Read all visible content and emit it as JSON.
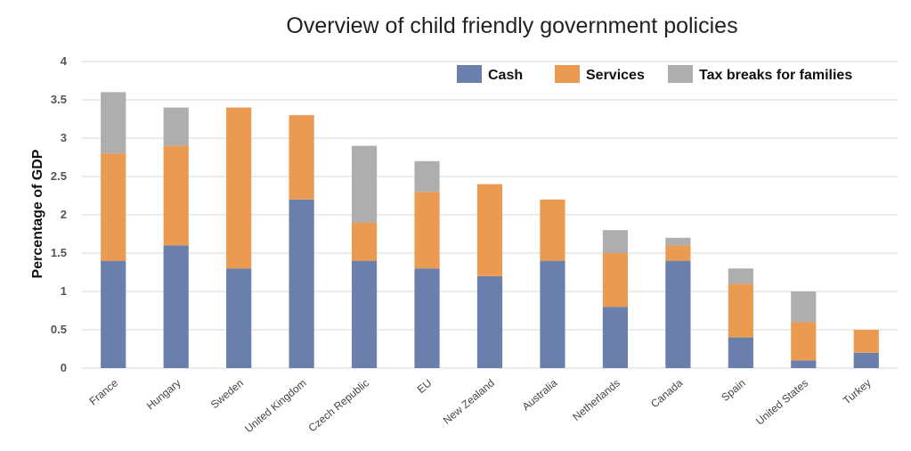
{
  "chart_data": {
    "type": "bar",
    "stacked": true,
    "title": "Overview of child friendly government policies",
    "xlabel": "",
    "ylabel": "Percentage of GDP",
    "ylim": [
      0,
      4
    ],
    "yticks": [
      "0",
      "0.5",
      "1",
      "1.5",
      "2",
      "2.5",
      "3",
      "3.5",
      "4"
    ],
    "grid": true,
    "legend_position": "top-right",
    "categories": [
      "France",
      "Hungary",
      "Sweden",
      "United Kingdom",
      "Czech Republic",
      "EU",
      "New Zealand",
      "Australia",
      "Netherlands",
      "Canada",
      "Spain",
      "United States",
      "Turkey"
    ],
    "series": [
      {
        "name": "Cash",
        "color": "#6a7fab",
        "values": [
          1.4,
          1.6,
          1.3,
          2.2,
          1.4,
          1.3,
          1.2,
          1.4,
          0.8,
          1.4,
          0.4,
          0.1,
          0.2
        ]
      },
      {
        "name": "Services",
        "color": "#eb9a52",
        "values": [
          1.4,
          1.3,
          2.1,
          1.1,
          0.5,
          1.0,
          1.2,
          0.8,
          0.7,
          0.2,
          0.7,
          0.5,
          0.3
        ]
      },
      {
        "name": "Tax breaks for families",
        "color": "#aeaeae",
        "values": [
          0.8,
          0.5,
          0.0,
          0.0,
          1.0,
          0.4,
          0.0,
          0.0,
          0.3,
          0.1,
          0.2,
          0.4,
          0.0
        ]
      }
    ]
  }
}
